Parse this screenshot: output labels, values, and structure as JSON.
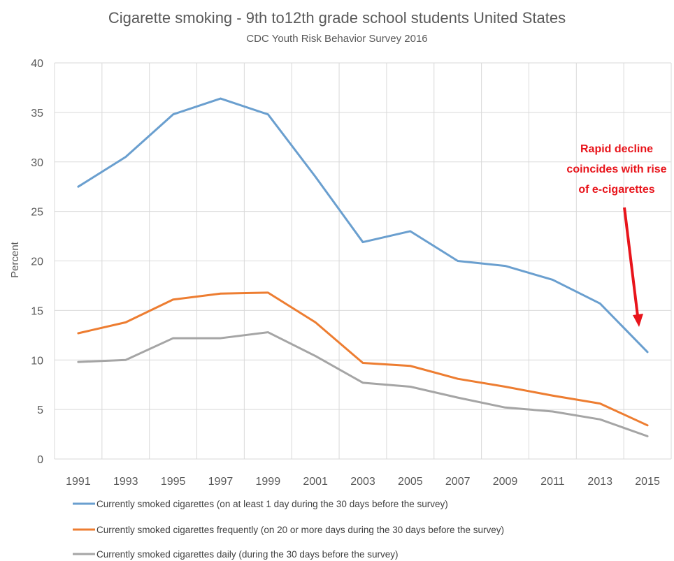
{
  "chart_data": {
    "type": "line",
    "title": "Cigarette smoking  - 9th to12th grade school students United States",
    "subtitle": "CDC Youth Risk Behavior Survey 2016",
    "xlabel": "",
    "ylabel": "Percent",
    "ylim": [
      0,
      40
    ],
    "yticks": [
      "0",
      "5",
      "10",
      "15",
      "20",
      "25",
      "30",
      "35",
      "40"
    ],
    "x": [
      "1991",
      "1993",
      "1995",
      "1997",
      "1999",
      "2001",
      "2003",
      "2005",
      "2007",
      "2009",
      "2011",
      "2013",
      "2015"
    ],
    "grid": true,
    "legend_position": "bottom",
    "series": [
      {
        "name": "Currently smoked cigarettes (on at least 1 day during the 30 days before the survey)",
        "color": "#6a9fcf",
        "values": [
          27.5,
          30.5,
          34.8,
          36.4,
          34.8,
          28.5,
          21.9,
          23.0,
          20.0,
          19.5,
          18.1,
          15.7,
          10.8
        ]
      },
      {
        "name": "Currently smoked cigarettes frequently (on 20 or more days during  the 30 days before the survey)",
        "color": "#ed7d31",
        "values": [
          12.7,
          13.8,
          16.1,
          16.7,
          16.8,
          13.8,
          9.7,
          9.4,
          8.1,
          7.3,
          6.4,
          5.6,
          3.4
        ]
      },
      {
        "name": "Currently smoked cigarettes daily (during the 30 days before the survey)",
        "color": "#a5a5a5",
        "values": [
          9.8,
          10.0,
          12.2,
          12.2,
          12.8,
          10.4,
          7.7,
          7.3,
          6.2,
          5.2,
          4.8,
          4.0,
          2.3
        ]
      }
    ],
    "annotation": {
      "lines": [
        "Rapid decline",
        "coincides with rise",
        "of e-cigarettes"
      ],
      "color": "#e8141b"
    }
  }
}
